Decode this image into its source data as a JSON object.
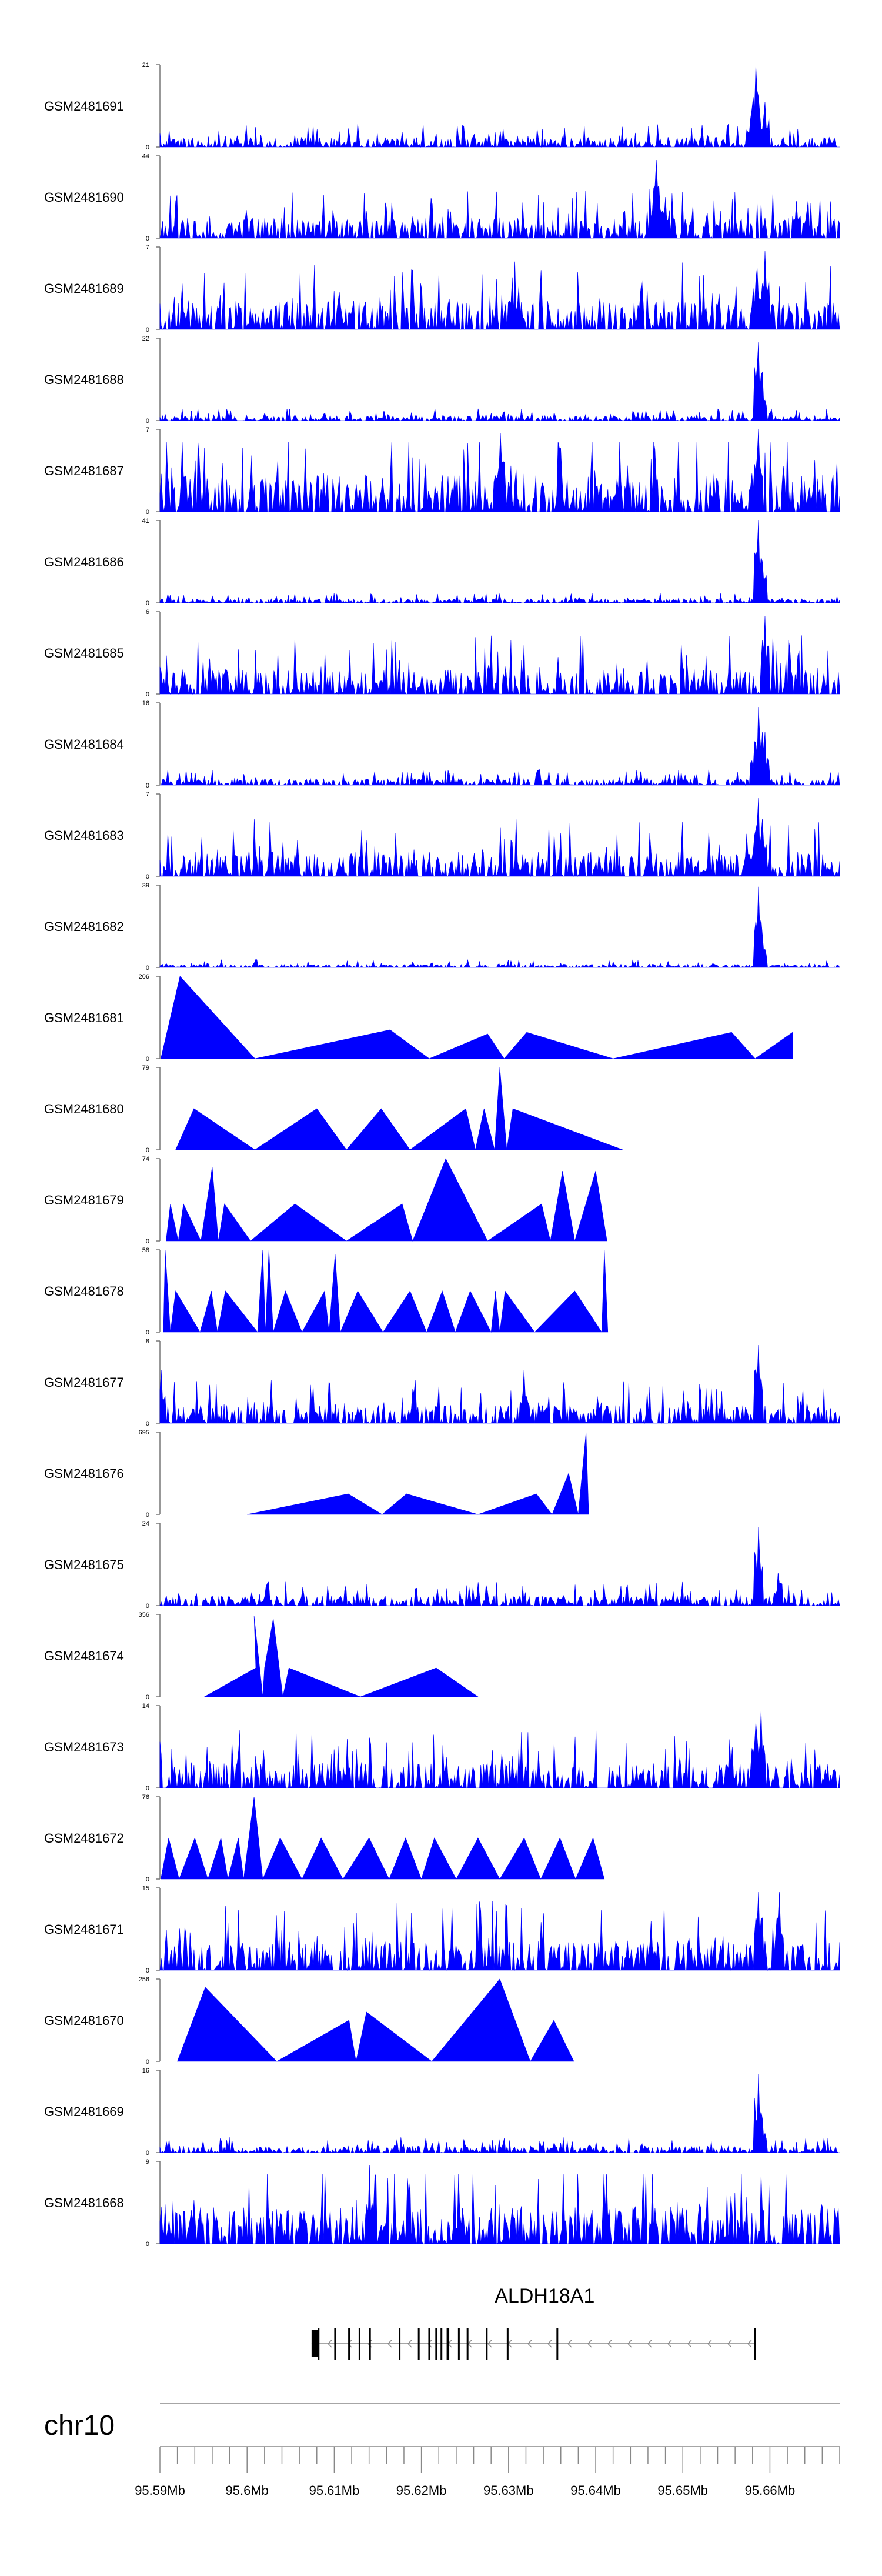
{
  "chart_data": {
    "type": "area",
    "description_style": "genome coverage tracks",
    "fill_color": "#0000ff",
    "axis_color": "#777777",
    "tracks": [
      {
        "name": "GSM2481691",
        "ymax": "21",
        "ymin": "0",
        "kind": "dense",
        "seed": 11,
        "base": 0.12,
        "spikes": [
          [
            95.6584,
            1.0
          ],
          [
            95.6595,
            0.55
          ],
          [
            95.6578,
            0.35
          ]
        ]
      },
      {
        "name": "GSM2481690",
        "ymax": "44",
        "ymin": "0",
        "kind": "sparse",
        "seed": 12,
        "base": 0.25,
        "spikes": [
          [
            95.647,
            0.95
          ],
          [
            95.648,
            0.5
          ],
          [
            95.663,
            0.45
          ]
        ]
      },
      {
        "name": "GSM2481689",
        "ymax": "7",
        "ymin": "0",
        "kind": "dense",
        "seed": 13,
        "base": 0.35,
        "spikes": [
          [
            95.6595,
            0.95
          ],
          [
            95.6585,
            0.75
          ]
        ]
      },
      {
        "name": "GSM2481688",
        "ymax": "22",
        "ymin": "0",
        "kind": "dense",
        "seed": 14,
        "base": 0.06,
        "spikes": [
          [
            95.6587,
            0.95
          ],
          [
            95.6592,
            0.45
          ]
        ]
      },
      {
        "name": "GSM2481687",
        "ymax": "7",
        "ymin": "0",
        "kind": "dense",
        "seed": 15,
        "base": 0.45,
        "spikes": [
          [
            95.6587,
            1.0
          ],
          [
            95.629,
            0.95
          ]
        ]
      },
      {
        "name": "GSM2481686",
        "ymax": "41",
        "ymin": "0",
        "kind": "dense",
        "seed": 16,
        "base": 0.05,
        "spikes": [
          [
            95.6587,
            1.0
          ],
          [
            95.6592,
            0.5
          ]
        ]
      },
      {
        "name": "GSM2481685",
        "ymax": "6",
        "ymin": "0",
        "kind": "dense",
        "seed": 17,
        "base": 0.3,
        "spikes": [
          [
            95.6595,
            0.95
          ]
        ]
      },
      {
        "name": "GSM2481684",
        "ymax": "16",
        "ymin": "0",
        "kind": "dense",
        "seed": 18,
        "base": 0.08,
        "spikes": [
          [
            95.6587,
            0.95
          ],
          [
            95.6594,
            0.65
          ],
          [
            95.6582,
            0.45
          ]
        ]
      },
      {
        "name": "GSM2481683",
        "ymax": "7",
        "ymin": "0",
        "kind": "dense",
        "seed": 19,
        "base": 0.3,
        "spikes": [
          [
            95.6587,
            0.95
          ],
          [
            95.6592,
            0.7
          ],
          [
            95.6582,
            0.5
          ]
        ]
      },
      {
        "name": "GSM2481682",
        "ymax": "39",
        "ymin": "0",
        "kind": "dense",
        "seed": 20,
        "base": 0.04,
        "spikes": [
          [
            95.6587,
            0.98
          ],
          [
            95.6592,
            0.4
          ]
        ]
      },
      {
        "name": "GSM2481681",
        "ymax": "206",
        "ymin": "0",
        "kind": "points",
        "seed": 21,
        "points": [
          [
            95.5901,
            0.0
          ],
          [
            95.5923,
            1.0
          ],
          [
            95.6009,
            0.0
          ],
          [
            95.6164,
            0.35
          ],
          [
            95.6209,
            0.0
          ],
          [
            95.6276,
            0.3
          ],
          [
            95.6295,
            0.0
          ],
          [
            95.6321,
            0.32
          ],
          [
            95.642,
            0.0
          ],
          [
            95.6556,
            0.32
          ],
          [
            95.6583,
            0.0
          ],
          [
            95.6626,
            0.32
          ]
        ]
      },
      {
        "name": "GSM2481680",
        "ymax": "79",
        "ymin": "0",
        "kind": "points",
        "seed": 22,
        "points": [
          [
            95.5918,
            0.0
          ],
          [
            95.5939,
            0.5
          ],
          [
            95.6009,
            0.0
          ],
          [
            95.608,
            0.5
          ],
          [
            95.6114,
            0.0
          ],
          [
            95.6154,
            0.5
          ],
          [
            95.6187,
            0.0
          ],
          [
            95.6251,
            0.5
          ],
          [
            95.6262,
            0.0
          ],
          [
            95.6272,
            0.5
          ],
          [
            95.6284,
            0.0
          ],
          [
            95.629,
            1.0
          ],
          [
            95.6298,
            0.0
          ],
          [
            95.6305,
            0.5
          ],
          [
            95.6431,
            0.0
          ]
        ]
      },
      {
        "name": "GSM2481679",
        "ymax": "74",
        "ymin": "0",
        "kind": "points",
        "seed": 23,
        "points": [
          [
            95.5907,
            0.0
          ],
          [
            95.5912,
            0.45
          ],
          [
            95.5921,
            0.0
          ],
          [
            95.5927,
            0.45
          ],
          [
            95.5947,
            0.0
          ],
          [
            95.596,
            0.9
          ],
          [
            95.5967,
            0.0
          ],
          [
            95.5974,
            0.45
          ],
          [
            95.6004,
            0.0
          ],
          [
            95.6055,
            0.45
          ],
          [
            95.6114,
            0.0
          ],
          [
            95.6178,
            0.45
          ],
          [
            95.619,
            0.0
          ],
          [
            95.6228,
            1.0
          ],
          [
            95.6276,
            0.0
          ],
          [
            95.6338,
            0.45
          ],
          [
            95.6348,
            0.0
          ],
          [
            95.6362,
            0.85
          ],
          [
            95.6376,
            0.0
          ],
          [
            95.64,
            0.85
          ],
          [
            95.6413,
            0.0
          ]
        ]
      },
      {
        "name": "GSM2481678",
        "ymax": "58",
        "ymin": "0",
        "kind": "points",
        "seed": 24,
        "points": [
          [
            95.5904,
            0.0
          ],
          [
            95.5906,
            1.0
          ],
          [
            95.5912,
            0.0
          ],
          [
            95.5918,
            0.5
          ],
          [
            95.5946,
            0.0
          ],
          [
            95.5959,
            0.5
          ],
          [
            95.5966,
            0.0
          ],
          [
            95.5975,
            0.5
          ],
          [
            95.6012,
            0.0
          ],
          [
            95.6018,
            1.0
          ],
          [
            95.6021,
            0.0
          ],
          [
            95.6025,
            1.0
          ],
          [
            95.603,
            0.0
          ],
          [
            95.6044,
            0.5
          ],
          [
            95.6063,
            0.0
          ],
          [
            95.6089,
            0.5
          ],
          [
            95.6094,
            0.0
          ],
          [
            95.6101,
            0.95
          ],
          [
            95.6107,
            0.0
          ],
          [
            95.6127,
            0.5
          ],
          [
            95.6156,
            0.0
          ],
          [
            95.6187,
            0.5
          ],
          [
            95.6206,
            0.0
          ],
          [
            95.6224,
            0.5
          ],
          [
            95.6239,
            0.0
          ],
          [
            95.6256,
            0.5
          ],
          [
            95.628,
            0.0
          ],
          [
            95.6285,
            0.5
          ],
          [
            95.629,
            0.0
          ],
          [
            95.6296,
            0.5
          ],
          [
            95.633,
            0.0
          ],
          [
            95.6376,
            0.5
          ],
          [
            95.6407,
            0.0
          ],
          [
            95.641,
            1.0
          ],
          [
            95.6414,
            0.0
          ]
        ]
      },
      {
        "name": "GSM2481677",
        "ymax": "8",
        "ymin": "0",
        "kind": "dense",
        "seed": 25,
        "base": 0.22,
        "spikes": [
          [
            95.6587,
            0.95
          ],
          [
            95.6318,
            0.65
          ],
          [
            95.5902,
            0.65
          ]
        ]
      },
      {
        "name": "GSM2481676",
        "ymax": "695",
        "ymin": "0",
        "kind": "points",
        "seed": 26,
        "points": [
          [
            95.6,
            0.0
          ],
          [
            95.6116,
            0.25
          ],
          [
            95.6155,
            0.0
          ],
          [
            95.6183,
            0.25
          ],
          [
            95.6265,
            0.0
          ],
          [
            95.6332,
            0.25
          ],
          [
            95.635,
            0.0
          ],
          [
            95.6369,
            0.5
          ],
          [
            95.638,
            0.0
          ],
          [
            95.6389,
            1.0
          ],
          [
            95.6392,
            0.0
          ]
        ]
      },
      {
        "name": "GSM2481675",
        "ymax": "24",
        "ymin": "0",
        "kind": "dense",
        "seed": 27,
        "base": 0.12,
        "spikes": [
          [
            95.6587,
            0.95
          ],
          [
            95.661,
            0.4
          ]
        ]
      },
      {
        "name": "GSM2481674",
        "ymax": "356",
        "ymin": "0",
        "kind": "points",
        "seed": 28,
        "points": [
          [
            95.5951,
            0.0
          ],
          [
            95.601,
            0.35
          ],
          [
            95.6008,
            0.98
          ],
          [
            95.6018,
            0.0
          ],
          [
            95.602,
            0.35
          ],
          [
            95.603,
            0.95
          ],
          [
            95.6041,
            0.0
          ],
          [
            95.6048,
            0.35
          ],
          [
            95.613,
            0.0
          ],
          [
            95.6217,
            0.35
          ],
          [
            95.6265,
            0.0
          ]
        ]
      },
      {
        "name": "GSM2481673",
        "ymax": "14",
        "ymin": "0",
        "kind": "dense",
        "seed": 29,
        "base": 0.3,
        "spikes": [
          [
            95.659,
            0.95
          ],
          [
            95.6584,
            0.8
          ]
        ]
      },
      {
        "name": "GSM2481672",
        "ymax": "76",
        "ymin": "0",
        "kind": "points",
        "seed": 30,
        "points": [
          [
            95.5901,
            0.0
          ],
          [
            95.591,
            0.5
          ],
          [
            95.5922,
            0.0
          ],
          [
            95.594,
            0.5
          ],
          [
            95.5955,
            0.0
          ],
          [
            95.597,
            0.5
          ],
          [
            95.5978,
            0.0
          ],
          [
            95.599,
            0.5
          ],
          [
            95.5996,
            0.0
          ],
          [
            95.6008,
            1.0
          ],
          [
            95.6018,
            0.0
          ],
          [
            95.6038,
            0.5
          ],
          [
            95.6063,
            0.0
          ],
          [
            95.6085,
            0.5
          ],
          [
            95.611,
            0.0
          ],
          [
            95.614,
            0.5
          ],
          [
            95.6163,
            0.0
          ],
          [
            95.6182,
            0.5
          ],
          [
            95.62,
            0.0
          ],
          [
            95.6215,
            0.5
          ],
          [
            95.624,
            0.0
          ],
          [
            95.6265,
            0.5
          ],
          [
            95.629,
            0.0
          ],
          [
            95.6318,
            0.5
          ],
          [
            95.6337,
            0.0
          ],
          [
            95.6359,
            0.5
          ],
          [
            95.6377,
            0.0
          ],
          [
            95.6397,
            0.5
          ],
          [
            95.641,
            0.0
          ]
        ]
      },
      {
        "name": "GSM2481671",
        "ymax": "15",
        "ymin": "0",
        "kind": "dense",
        "seed": 31,
        "base": 0.35,
        "spikes": [
          [
            95.6587,
            0.95
          ],
          [
            95.6611,
            0.95
          ]
        ]
      },
      {
        "name": "GSM2481670",
        "ymax": "256",
        "ymin": "0",
        "kind": "points",
        "seed": 32,
        "points": [
          [
            95.592,
            0.0
          ],
          [
            95.5952,
            0.9
          ],
          [
            95.6034,
            0.0
          ],
          [
            95.6117,
            0.5
          ],
          [
            95.6125,
            0.0
          ],
          [
            95.6137,
            0.6
          ],
          [
            95.6212,
            0.0
          ],
          [
            95.629,
            1.0
          ],
          [
            95.6325,
            0.0
          ],
          [
            95.6352,
            0.5
          ],
          [
            95.6375,
            0.0
          ]
        ]
      },
      {
        "name": "GSM2481669",
        "ymax": "16",
        "ymin": "0",
        "kind": "dense",
        "seed": 33,
        "base": 0.08,
        "spikes": [
          [
            95.6587,
            0.95
          ],
          [
            95.659,
            0.5
          ]
        ]
      },
      {
        "name": "GSM2481668",
        "ymax": "9",
        "ymin": "0",
        "kind": "dense",
        "seed": 34,
        "base": 0.45,
        "spikes": [
          [
            95.614,
            0.95
          ]
        ]
      }
    ],
    "gene": {
      "name": "ALDH18A1",
      "start": 95.6074,
      "end": 95.6582,
      "strand": "-",
      "exons": [
        [
          95.6074,
          95.6081
        ],
        [
          95.6081,
          95.6083
        ],
        [
          95.61,
          95.6102
        ],
        [
          95.6116,
          95.6117
        ],
        [
          95.6128,
          95.613
        ],
        [
          95.614,
          95.6142
        ],
        [
          95.6174,
          95.6176
        ],
        [
          95.6196,
          95.6197
        ],
        [
          95.6208,
          95.6209
        ],
        [
          95.6216,
          95.6218
        ],
        [
          95.6222,
          95.6224
        ],
        [
          95.6229,
          95.6232
        ],
        [
          95.6242,
          95.6243
        ],
        [
          95.6252,
          95.6254
        ],
        [
          95.6274,
          95.6276
        ],
        [
          95.6298,
          95.63
        ],
        [
          95.6355,
          95.6356
        ],
        [
          95.6582,
          95.6584
        ]
      ]
    },
    "x_axis": {
      "chromosome": "chr10",
      "xlim": [
        95.59,
        95.668
      ],
      "unit": "Mb",
      "major_ticks": [
        95.59,
        95.6,
        95.61,
        95.62,
        95.63,
        95.64,
        95.65,
        95.66
      ],
      "tick_labels": [
        "95.59Mb",
        "95.6Mb",
        "95.61Mb",
        "95.62Mb",
        "95.63Mb",
        "95.64Mb",
        "95.65Mb",
        "95.66Mb"
      ],
      "minor_step": 0.002
    }
  }
}
